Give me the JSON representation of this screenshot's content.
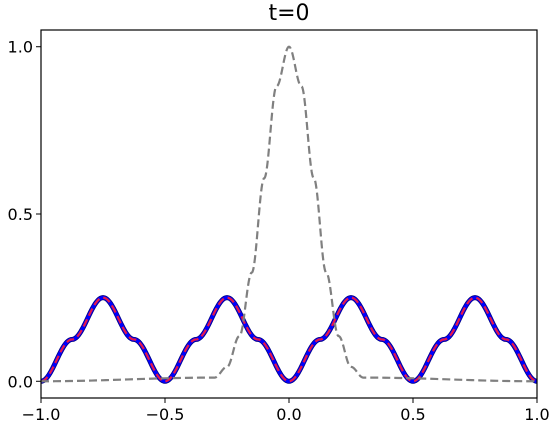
{
  "chart_data": {
    "type": "line",
    "title": "t=0",
    "xlabel": "",
    "ylabel": "",
    "xlim": [
      -1.0,
      1.0
    ],
    "ylim": [
      -0.05,
      1.05
    ],
    "x_ticks": [
      -1.0,
      -0.5,
      0.0,
      0.5,
      1.0
    ],
    "x_tick_labels": [
      "−1.0",
      "−0.5",
      "0.0",
      "0.5",
      "1.0"
    ],
    "y_ticks": [
      0.0,
      0.5,
      1.0
    ],
    "y_tick_labels": [
      "0.0",
      "0.5",
      "1.0"
    ],
    "grid": false,
    "series": [
      {
        "style": "solid",
        "color": "#0000ff",
        "x": [
          -1.0,
          -0.875,
          -0.75,
          -0.625,
          -0.5,
          -0.375,
          -0.25,
          -0.125,
          0.0,
          0.125,
          0.25,
          0.375,
          0.5,
          0.625,
          0.75,
          0.875,
          1.0
        ],
        "y": [
          0.0,
          0.125,
          0.25,
          0.125,
          0.0,
          0.125,
          0.25,
          0.125,
          0.0,
          0.125,
          0.25,
          0.125,
          0.0,
          0.125,
          0.25,
          0.125,
          0.0
        ]
      },
      {
        "style": "dashed",
        "color": "#e8174a",
        "x": [
          -1.0,
          -0.875,
          -0.75,
          -0.625,
          -0.5,
          -0.375,
          -0.25,
          -0.125,
          0.0,
          0.125,
          0.25,
          0.375,
          0.5,
          0.625,
          0.75,
          0.875,
          1.0
        ],
        "y": [
          0.0,
          0.125,
          0.25,
          0.125,
          0.0,
          0.125,
          0.25,
          0.125,
          0.0,
          0.125,
          0.25,
          0.125,
          0.0,
          0.125,
          0.25,
          0.125,
          0.0
        ]
      },
      {
        "style": "dashed",
        "color": "#808080",
        "x": [
          -1.0,
          -0.3,
          -0.25,
          -0.2,
          -0.15,
          -0.1,
          -0.05,
          0.0,
          0.05,
          0.1,
          0.15,
          0.2,
          0.25,
          0.3,
          1.0
        ],
        "y": [
          0.0,
          0.011,
          0.043,
          0.135,
          0.325,
          0.607,
          0.882,
          1.0,
          0.882,
          0.607,
          0.325,
          0.135,
          0.043,
          0.011,
          0.0
        ]
      }
    ]
  }
}
